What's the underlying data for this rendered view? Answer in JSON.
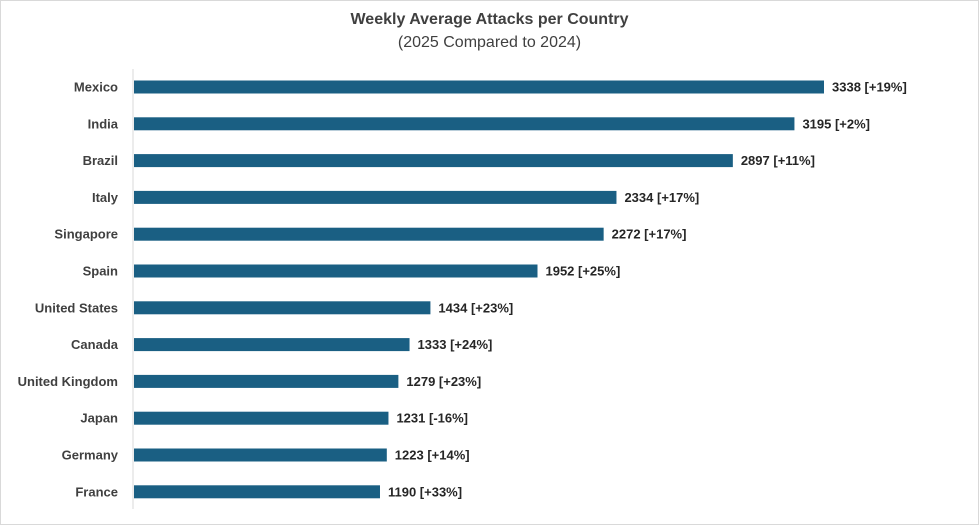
{
  "chart_data": {
    "type": "bar",
    "orientation": "horizontal",
    "title": "Weekly Average Attacks per Country",
    "subtitle": "(2025 Compared to 2024)",
    "categories": [
      "Mexico",
      "India",
      "Brazil",
      "Italy",
      "Singapore",
      "Spain",
      "United States",
      "Canada",
      "United Kingdom",
      "Japan",
      "Germany",
      "France"
    ],
    "values": [
      3338,
      3195,
      2897,
      2334,
      2272,
      1952,
      1434,
      1333,
      1279,
      1231,
      1223,
      1190
    ],
    "data_labels": [
      "3338 [+19%]",
      "3195 [+2%]",
      "2897 [+11%]",
      "2334 [+17%]",
      "2272 [+17%]",
      "1952 [+25%]",
      "1434 [+23%]",
      "1333 [+24%]",
      "1279 [+23%]",
      "1231 [-16%]",
      "1223 [+14%]",
      "1190 [+33%]"
    ],
    "xlim": [
      0,
      3338
    ],
    "bar_color": "#1a5f83",
    "grid": false,
    "legend": "none"
  }
}
